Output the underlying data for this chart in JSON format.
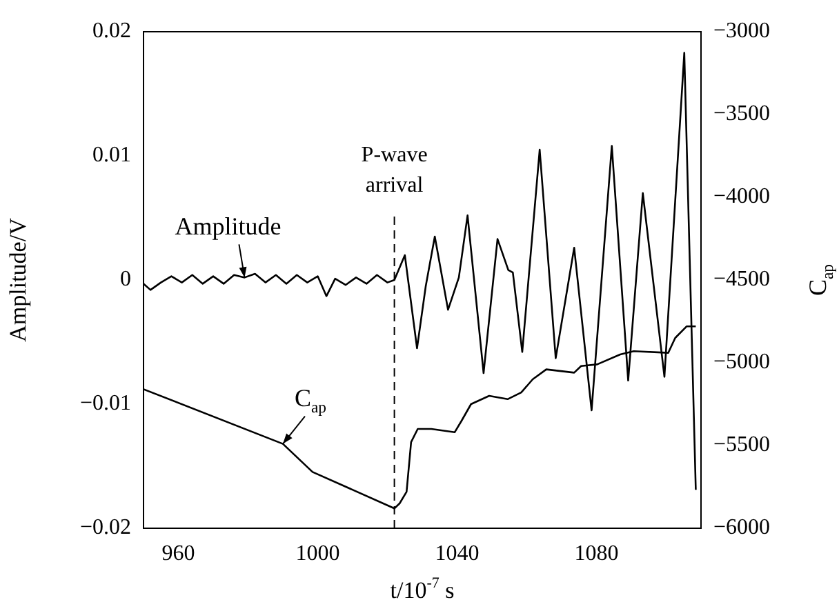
{
  "chart_data": {
    "type": "line",
    "xlabel": "t/10$^{-7}$ s",
    "ylabel": "Amplitude/V",
    "y2label": "C$_{ap}$",
    "xlim": [
      950,
      1110
    ],
    "xticks": [
      960,
      1000,
      1040,
      1080
    ],
    "ylim": [
      -0.02,
      0.02
    ],
    "yticks": [
      {
        "value": -0.02,
        "label": "−0.02"
      },
      {
        "value": -0.01,
        "label": "−0.01"
      },
      0,
      0.01,
      0.02
    ],
    "y2lim": [
      -6000,
      -3000
    ],
    "y2ticks": [
      {
        "value": -6000,
        "label": "−6000"
      },
      {
        "value": -5500,
        "label": "−5500"
      },
      {
        "value": -5000,
        "label": "−5000"
      },
      {
        "value": -4500,
        "label": "−4500"
      },
      {
        "value": -4000,
        "label": "−4000"
      },
      {
        "value": -3500,
        "label": "−3500"
      },
      {
        "value": -3000,
        "label": "−3000"
      }
    ],
    "grid": false,
    "legend": false,
    "marker": "none",
    "line_style": "solid",
    "ref_lines": [
      {
        "axis": "x",
        "value": 1022,
        "label": "P-wave\narrival",
        "line_style": "dashed"
      }
    ],
    "series": [
      {
        "name": "Amplitude",
        "color": "#000000",
        "axis": "y",
        "x": [
          950,
          952,
          955,
          958,
          961,
          964,
          967,
          970,
          973,
          976,
          979,
          982,
          985,
          988,
          991,
          994,
          997,
          1000,
          1002.5,
          1005,
          1008,
          1011,
          1014,
          1017,
          1020,
          1022,
          1025,
          1028.5,
          1031,
          1033.6,
          1037.4,
          1040.5,
          1043,
          1047.6,
          1051.6,
          1054.7,
          1056,
          1058.7,
          1063.7,
          1068.3,
          1073.6,
          1078.6,
          1084.4,
          1089.1,
          1093.3,
          1099.5,
          1105.2,
          1108.5
        ],
        "values": [
          -0.0003,
          -0.0008,
          -0.0002,
          0.0003,
          -0.0002,
          0.0004,
          -0.0003,
          0.0003,
          -0.0003,
          0.0004,
          0.0002,
          0.0005,
          -0.0002,
          0.0004,
          -0.0003,
          0.0004,
          -0.0002,
          0.0003,
          -0.0013,
          0.0001,
          -0.0004,
          0.0002,
          -0.0003,
          0.0004,
          -0.0002,
          0.0,
          0.002,
          -0.0055,
          -0.0005,
          0.0035,
          -0.0024,
          0.0002,
          0.0052,
          -0.0075,
          0.0033,
          0.0008,
          0.0006,
          -0.0058,
          0.0105,
          -0.0063,
          0.0026,
          -0.0105,
          0.0108,
          -0.0081,
          0.007,
          -0.0078,
          0.0183,
          -0.0169
        ]
      },
      {
        "name": "C$_{ap}$",
        "color": "#000000",
        "axis": "y2",
        "x": [
          950,
          990,
          998.5,
          1022,
          1023.5,
          1025.5,
          1026.8,
          1028.7,
          1032.6,
          1039.3,
          1041.3,
          1044,
          1049.2,
          1054.5,
          1058.4,
          1061.7,
          1065.6,
          1073.6,
          1075.6,
          1080.2,
          1086.8,
          1090.7,
          1100.6,
          1102.6,
          1105.9,
          1108.5
        ],
        "values": [
          -5160,
          -5490,
          -5660,
          -5880,
          -5850,
          -5780,
          -5480,
          -5400,
          -5400,
          -5420,
          -5350,
          -5250,
          -5200,
          -5220,
          -5180,
          -5100,
          -5040,
          -5060,
          -5020,
          -5010,
          -4950,
          -4930,
          -4940,
          -4850,
          -4780,
          -4780
        ]
      }
    ]
  }
}
